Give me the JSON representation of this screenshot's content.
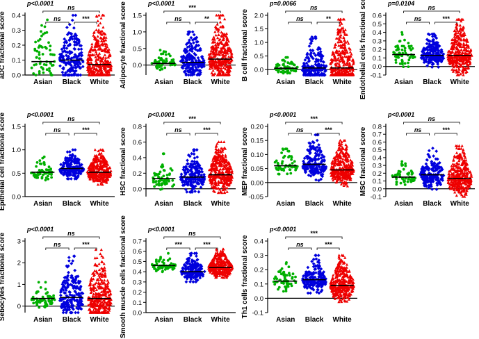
{
  "figure": {
    "groups": [
      "Asian",
      "Black",
      "White"
    ],
    "colors": {
      "Asian": "#00b000",
      "Black": "#0000dd",
      "White": "#ee0000",
      "median": "#000000"
    }
  },
  "chart_data": [
    {
      "type": "scatter",
      "ylabel": "aDC fractional score",
      "ylim": [
        0,
        0.4
      ],
      "ticks": [
        0.0,
        0.1,
        0.2,
        0.3,
        0.4
      ],
      "tick_labels": [
        "0.0",
        "0.1",
        "0.2",
        "0.3",
        "0.4"
      ],
      "series": [
        {
          "name": "Asian",
          "median": 0.09,
          "max": 0.37,
          "n": 60
        },
        {
          "name": "Black",
          "median": 0.1,
          "max": 0.4,
          "n": 180
        },
        {
          "name": "White",
          "median": 0.07,
          "max": 0.4,
          "n": 350
        }
      ],
      "annotations": {
        "overall": "p<0.0001",
        "asian_white": "ns",
        "asian_black": "ns",
        "black_white": "***"
      }
    },
    {
      "type": "scatter",
      "ylabel": "Adipocyte fractional score",
      "ylim": [
        -0.3,
        1.5
      ],
      "ticks": [
        0.0,
        0.5,
        1.0,
        1.5
      ],
      "tick_labels": [
        "0.0",
        "0.5",
        "1.0",
        "1.5"
      ],
      "series": [
        {
          "name": "Asian",
          "median": 0.05,
          "max": 0.45,
          "n": 60
        },
        {
          "name": "Black",
          "median": 0.08,
          "max": 1.0,
          "n": 180
        },
        {
          "name": "White",
          "median": 0.18,
          "max": 1.5,
          "n": 350
        }
      ],
      "annotations": {
        "overall": "p<0.0001",
        "asian_white": "***",
        "asian_black": "ns",
        "black_white": "**"
      }
    },
    {
      "type": "scatter",
      "ylabel": "B cell fractional score",
      "ylim": [
        -0.2,
        2.0
      ],
      "ticks": [
        0.0,
        0.5,
        1.0,
        1.5,
        2.0
      ],
      "tick_labels": [
        "0.0",
        "0.5",
        "1.0",
        "1.5",
        "2.0"
      ],
      "series": [
        {
          "name": "Asian",
          "median": 0.05,
          "max": 0.45,
          "n": 60
        },
        {
          "name": "Black",
          "median": 0.06,
          "max": 1.2,
          "n": 180
        },
        {
          "name": "White",
          "median": 0.06,
          "max": 1.85,
          "n": 350
        }
      ],
      "annotations": {
        "overall": "p=0.0066",
        "asian_white": "ns",
        "asian_black": "ns",
        "black_white": "**"
      }
    },
    {
      "type": "scatter",
      "ylabel": "Endothelial cells fractional score",
      "ylim": [
        -0.1,
        0.6
      ],
      "ticks": [
        -0.1,
        0.0,
        0.1,
        0.2,
        0.3,
        0.4,
        0.5,
        0.6
      ],
      "tick_labels": [
        "-0.1",
        "0.0",
        "0.1",
        "0.2",
        "0.3",
        "0.4",
        "0.5",
        "0.6"
      ],
      "series": [
        {
          "name": "Asian",
          "median": 0.14,
          "max": 0.4,
          "n": 60
        },
        {
          "name": "Black",
          "median": 0.13,
          "max": 0.38,
          "n": 180
        },
        {
          "name": "White",
          "median": 0.13,
          "max": 0.55,
          "n": 350
        }
      ],
      "annotations": {
        "overall": "p=0.0104",
        "asian_white": "ns",
        "asian_black": "ns",
        "black_white": "***"
      }
    },
    {
      "type": "scatter",
      "ylabel": "Epithelial cell fractional score",
      "ylim": [
        0.0,
        1.5
      ],
      "ticks": [
        0.0,
        0.5,
        1.0,
        1.5
      ],
      "tick_labels": [
        "0.0",
        "0.5",
        "1.0",
        "1.5"
      ],
      "series": [
        {
          "name": "Asian",
          "median": 0.52,
          "max": 0.85,
          "n": 60
        },
        {
          "name": "Black",
          "median": 0.6,
          "max": 1.0,
          "n": 180
        },
        {
          "name": "White",
          "median": 0.52,
          "max": 1.0,
          "n": 350
        }
      ],
      "annotations": {
        "overall": "p<0.0001",
        "asian_white": "ns",
        "asian_black": "ns",
        "black_white": "***"
      }
    },
    {
      "type": "scatter",
      "ylabel": "HSC fractional score",
      "ylim": [
        -0.1,
        0.8
      ],
      "ticks": [
        0.0,
        0.2,
        0.4,
        0.6,
        0.8
      ],
      "tick_labels": [
        "0.0",
        "0.2",
        "0.4",
        "0.6",
        "0.8"
      ],
      "series": [
        {
          "name": "Asian",
          "median": 0.13,
          "max": 0.45,
          "n": 60
        },
        {
          "name": "Black",
          "median": 0.15,
          "max": 0.5,
          "n": 180
        },
        {
          "name": "White",
          "median": 0.18,
          "max": 0.6,
          "n": 350
        }
      ],
      "annotations": {
        "overall": "p<0.0001",
        "asian_white": "***",
        "asian_black": "ns",
        "black_white": "***"
      }
    },
    {
      "type": "scatter",
      "ylabel": "MEP fractional score",
      "ylim": [
        -0.05,
        0.2
      ],
      "ticks": [
        -0.05,
        0.0,
        0.05,
        0.1,
        0.15,
        0.2
      ],
      "tick_labels": [
        "-0.05",
        "0.00",
        "0.05",
        "0.10",
        "0.15",
        "0.20"
      ],
      "series": [
        {
          "name": "Asian",
          "median": 0.06,
          "max": 0.12,
          "n": 60
        },
        {
          "name": "Black",
          "median": 0.065,
          "max": 0.17,
          "n": 180
        },
        {
          "name": "White",
          "median": 0.045,
          "max": 0.15,
          "n": 350
        }
      ],
      "annotations": {
        "overall": "p<0.0001",
        "asian_white": "***",
        "asian_black": "ns",
        "black_white": "***"
      }
    },
    {
      "type": "scatter",
      "ylabel": "MSC fractional score",
      "ylim": [
        -0.1,
        0.8
      ],
      "ticks": [
        -0.1,
        0.0,
        0.1,
        0.2,
        0.3,
        0.4,
        0.5,
        0.6,
        0.7,
        0.8
      ],
      "tick_labels": [
        "-0.1",
        "0.0",
        "0.1",
        "0.2",
        "0.3",
        "0.4",
        "0.5",
        "0.6",
        "0.7",
        "0.8"
      ],
      "series": [
        {
          "name": "Asian",
          "median": 0.15,
          "max": 0.35,
          "n": 60
        },
        {
          "name": "Black",
          "median": 0.18,
          "max": 0.52,
          "n": 180
        },
        {
          "name": "White",
          "median": 0.13,
          "max": 0.55,
          "n": 350
        }
      ],
      "annotations": {
        "overall": "p<0.0001",
        "asian_white": "ns",
        "asian_black": "ns",
        "black_white": "***"
      }
    },
    {
      "type": "scatter",
      "ylabel": "Sebocytes fractional score",
      "ylim": [
        -0.3,
        3.0
      ],
      "ticks": [
        0,
        1,
        2,
        3
      ],
      "tick_labels": [
        "0",
        "1",
        "2",
        "3"
      ],
      "series": [
        {
          "name": "Asian",
          "median": 0.35,
          "max": 1.1,
          "n": 60
        },
        {
          "name": "Black",
          "median": 0.4,
          "max": 2.3,
          "n": 180
        },
        {
          "name": "White",
          "median": 0.35,
          "max": 2.6,
          "n": 350
        }
      ],
      "annotations": {
        "overall": "p<0.0001",
        "asian_white": "ns",
        "asian_black": "ns",
        "black_white": "***"
      }
    },
    {
      "type": "scatter",
      "ylabel": "Smooth muscle cells fractional score",
      "ylim": [
        0.0,
        0.7
      ],
      "ticks": [
        0.0,
        0.1,
        0.2,
        0.3,
        0.4,
        0.5,
        0.6,
        0.7
      ],
      "tick_labels": [
        "0.0",
        "0.1",
        "0.2",
        "0.3",
        "0.4",
        "0.5",
        "0.6",
        "0.7"
      ],
      "series": [
        {
          "name": "Asian",
          "median": 0.46,
          "max": 0.58,
          "n": 60
        },
        {
          "name": "Black",
          "median": 0.4,
          "max": 0.58,
          "n": 180
        },
        {
          "name": "White",
          "median": 0.44,
          "max": 0.62,
          "n": 350
        }
      ],
      "annotations": {
        "overall": "p<0.0001",
        "asian_white": "ns",
        "asian_black": "***",
        "black_white": "***"
      }
    },
    {
      "type": "scatter",
      "ylabel": "Th1 cells fractional score",
      "ylim": [
        -0.1,
        0.4
      ],
      "ticks": [
        -0.1,
        0.0,
        0.1,
        0.2,
        0.3,
        0.4
      ],
      "tick_labels": [
        "-0.1",
        "0.0",
        "0.1",
        "0.2",
        "0.3",
        "0.4"
      ],
      "series": [
        {
          "name": "Asian",
          "median": 0.12,
          "max": 0.25,
          "n": 60
        },
        {
          "name": "Black",
          "median": 0.13,
          "max": 0.3,
          "n": 180
        },
        {
          "name": "White",
          "median": 0.09,
          "max": 0.3,
          "n": 350
        }
      ],
      "annotations": {
        "overall": "p<0.0001",
        "asian_white": "***",
        "asian_black": "ns",
        "black_white": "***"
      }
    }
  ]
}
